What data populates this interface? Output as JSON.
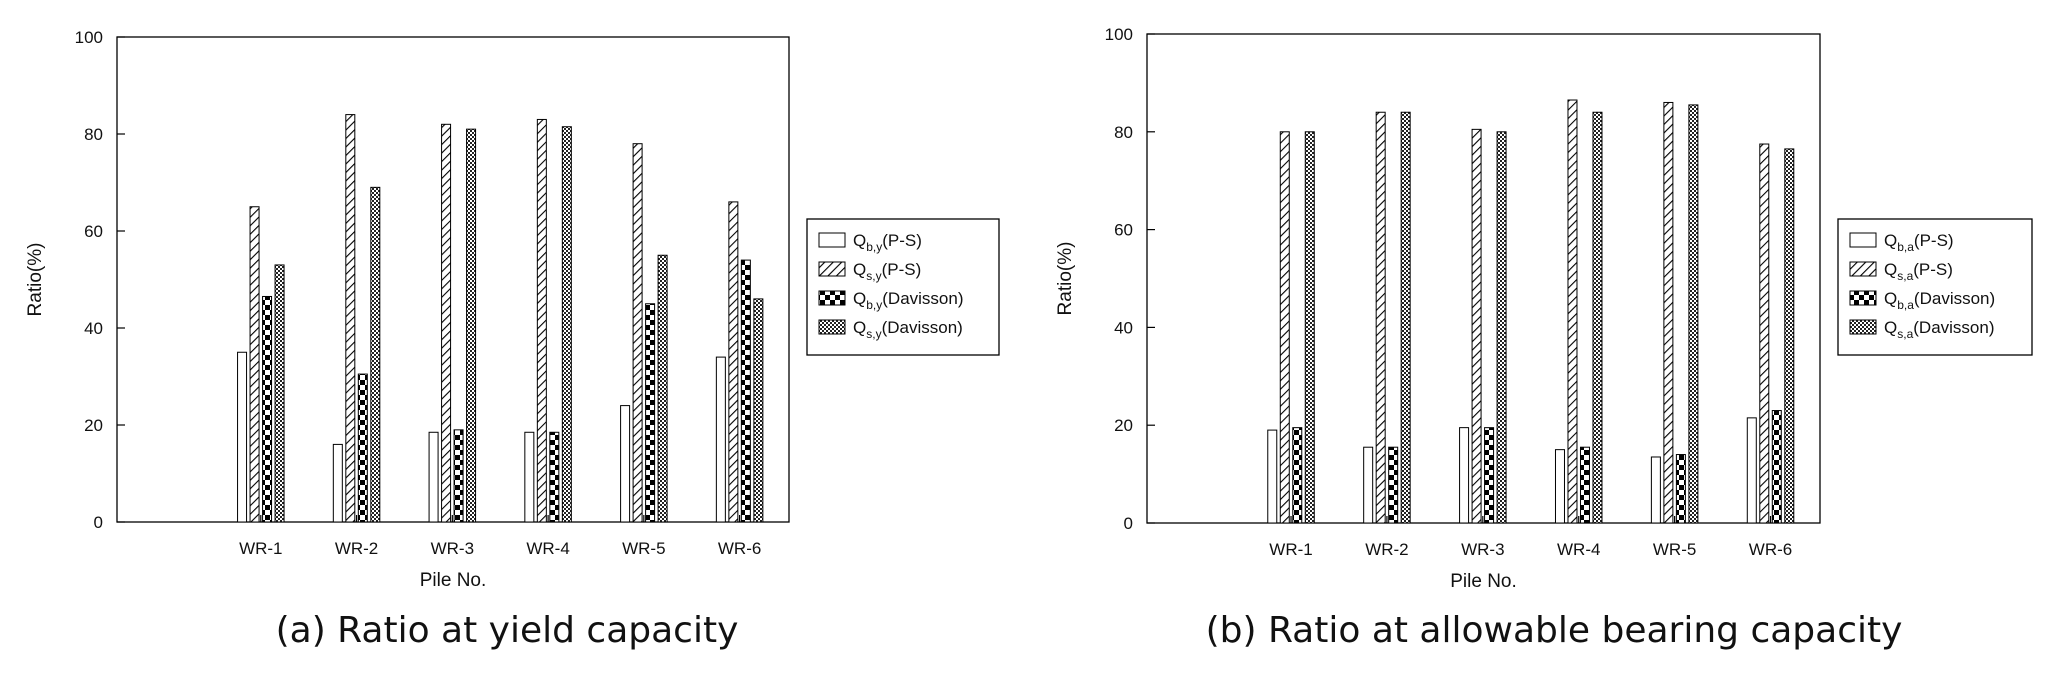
{
  "charts": [
    {
      "caption": "(a) Ratio at yield capacity",
      "chart_data": {
        "type": "bar",
        "ylabel": "Ratio(%)",
        "xlabel": "Pile No.",
        "ylim": [
          0,
          100
        ],
        "yticks": [
          0,
          20,
          40,
          60,
          80,
          100
        ],
        "grid": false,
        "legend_placement": "right, outside plot",
        "categories": [
          "WR-1",
          "WR-2",
          "WR-3",
          "WR-4",
          "WR-5",
          "WR-6"
        ],
        "series": [
          {
            "name": "Qb,y(P-S)",
            "label_main": "Q",
            "label_sub": "b,y",
            "label_tail": "(P-S)",
            "pattern": "blank",
            "values": [
              35,
              16,
              18.5,
              18.5,
              24,
              34
            ]
          },
          {
            "name": "Qs,y(P-S)",
            "label_main": "Q",
            "label_sub": "s,y",
            "label_tail": "(P-S)",
            "pattern": "diagonal",
            "values": [
              65,
              84,
              82,
              83,
              78,
              66
            ]
          },
          {
            "name": "Qb,y(Davisson)",
            "label_main": "Q",
            "label_sub": "b,y",
            "label_tail": "(Davisson)",
            "pattern": "checker",
            "values": [
              46.5,
              30.5,
              19,
              18.5,
              45,
              54
            ]
          },
          {
            "name": "Qs,y(Davisson)",
            "label_main": "Q",
            "label_sub": "s,y",
            "label_tail": "(Davisson)",
            "pattern": "fine-check",
            "values": [
              53,
              69,
              81,
              81.5,
              55,
              46
            ]
          }
        ]
      }
    },
    {
      "caption": "(b) Ratio at allowable bearing capacity",
      "chart_data": {
        "type": "bar",
        "ylabel": "Ratio(%)",
        "xlabel": "Pile No.",
        "ylim": [
          0,
          100
        ],
        "yticks": [
          0,
          20,
          40,
          60,
          80,
          100
        ],
        "grid": false,
        "legend_placement": "right, outside plot",
        "categories": [
          "WR-1",
          "WR-2",
          "WR-3",
          "WR-4",
          "WR-5",
          "WR-6"
        ],
        "series": [
          {
            "name": "Qb,a(P-S)",
            "label_main": "Q",
            "label_sub": "b,a",
            "label_tail": "(P-S)",
            "pattern": "blank",
            "values": [
              19,
              15.5,
              19.5,
              15,
              13.5,
              21.5
            ]
          },
          {
            "name": "Qs,a(P-S)",
            "label_main": "Q",
            "label_sub": "s,a",
            "label_tail": "(P-S)",
            "pattern": "diagonal",
            "values": [
              80,
              84,
              80.5,
              86.5,
              86,
              77.5
            ]
          },
          {
            "name": "Qb,a(Davisson)",
            "label_main": "Q",
            "label_sub": "b,a",
            "label_tail": "(Davisson)",
            "pattern": "checker",
            "values": [
              19.5,
              15.5,
              19.5,
              15.5,
              14,
              23
            ]
          },
          {
            "name": "Qs,a(Davisson)",
            "label_main": "Q",
            "label_sub": "s,a",
            "label_tail": "(Davisson)",
            "pattern": "fine-check",
            "values": [
              80,
              84,
              80,
              84,
              85.5,
              76.5
            ]
          }
        ]
      }
    }
  ]
}
